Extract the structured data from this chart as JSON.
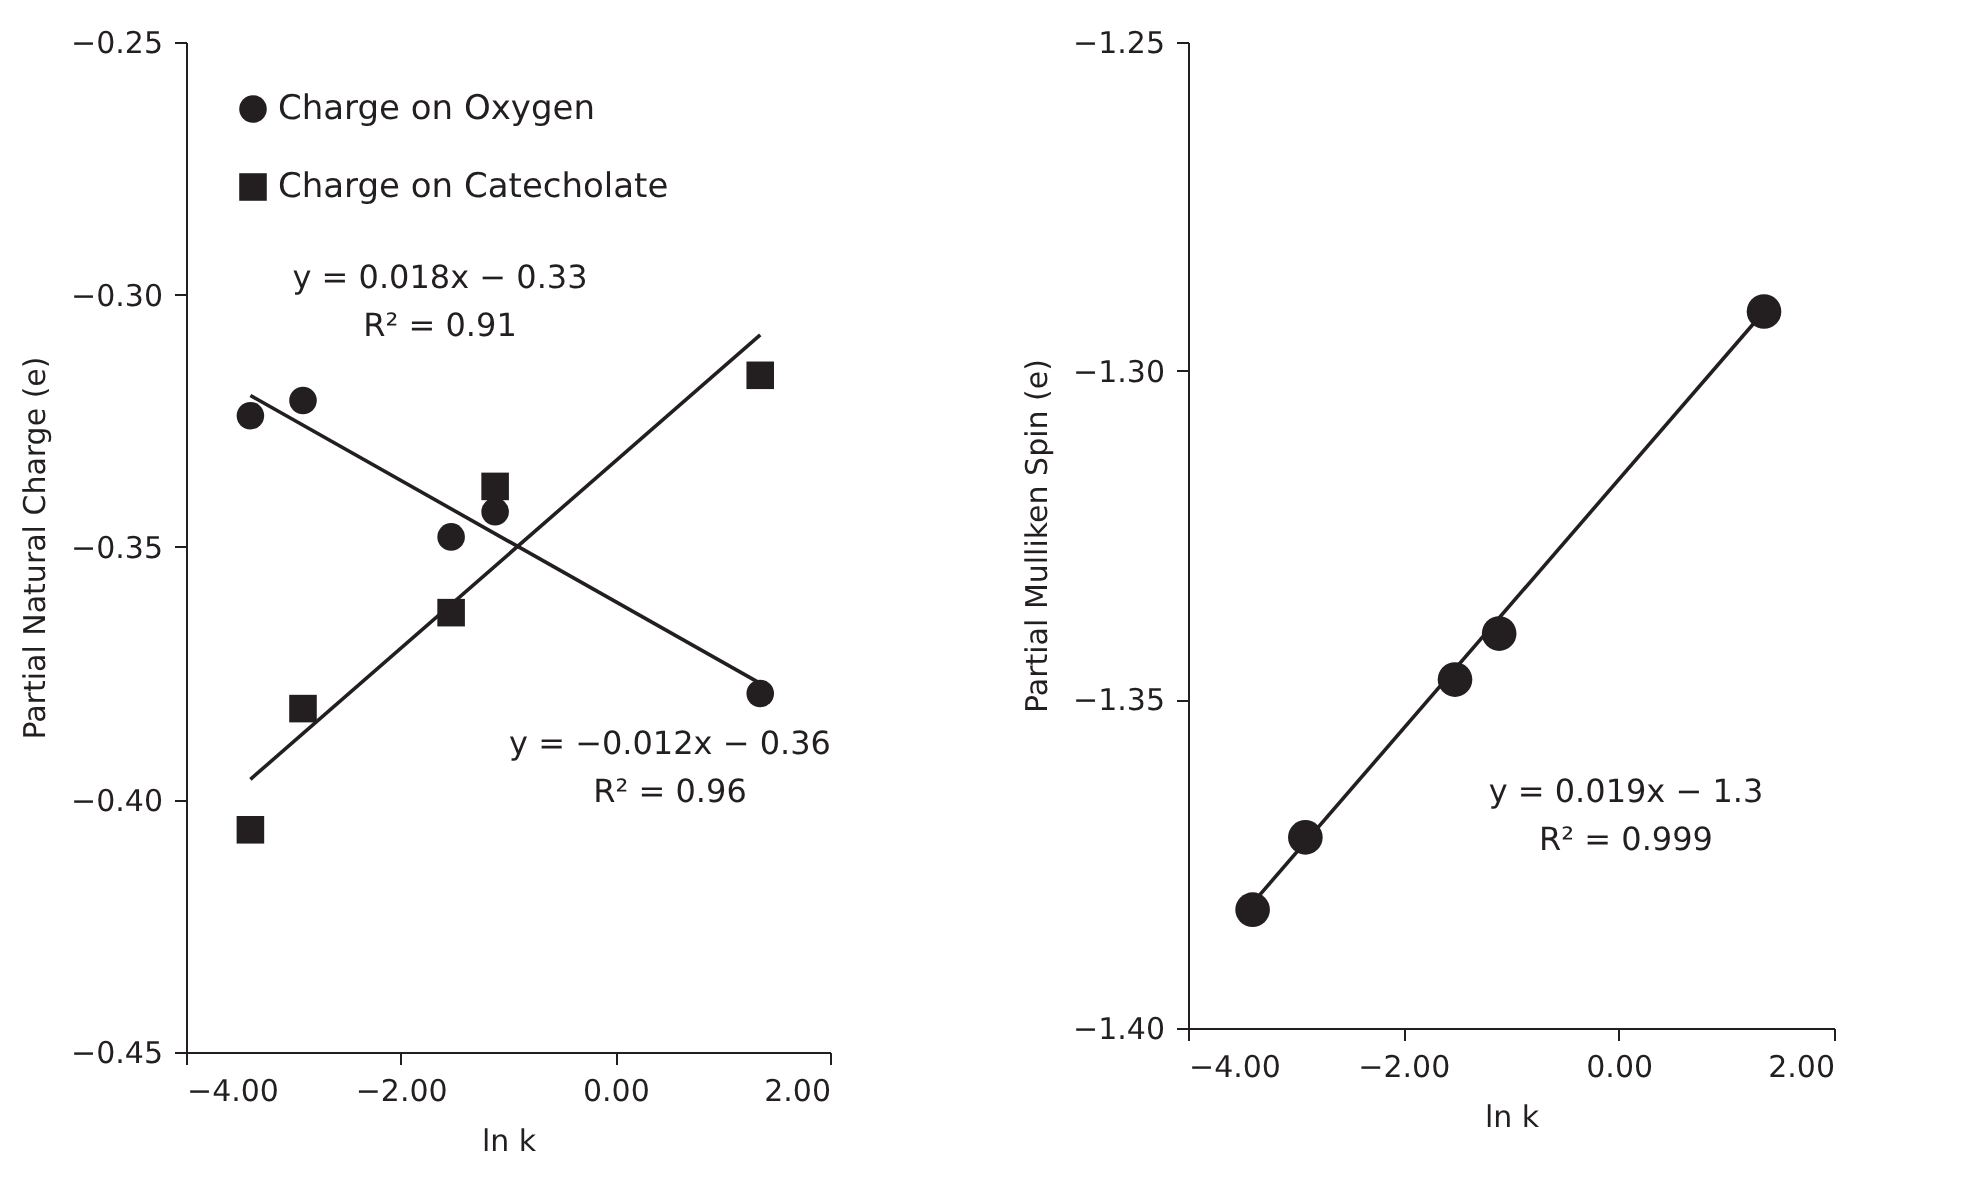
{
  "chart_data": [
    {
      "type": "scatter",
      "xlabel": "ln k",
      "ylabel": "Partial Natural Charge (e)",
      "xlim": [
        -4,
        2
      ],
      "xticks": [
        {
          "value": -4,
          "label": "−4.00"
        },
        {
          "value": -2,
          "label": "−2.00"
        },
        {
          "value": 0,
          "label": "0.00"
        },
        {
          "value": 2,
          "label": "2.00"
        }
      ],
      "ylim": [
        -0.45,
        -0.25
      ],
      "yticks": [
        {
          "value": -0.45,
          "label": "−0.45"
        },
        {
          "value": -0.4,
          "label": "−0.40"
        },
        {
          "value": -0.35,
          "label": "−0.35"
        },
        {
          "value": -0.3,
          "label": "−0.30"
        },
        {
          "value": -0.25,
          "label": "−0.25"
        }
      ],
      "grid": false,
      "legend": "top left",
      "series": [
        {
          "name": "Charge on Oxygen",
          "marker": "circle",
          "color": "#231f20",
          "x": [
            -3.4,
            -2.91,
            -1.53,
            -1.12,
            1.35
          ],
          "values": [
            -0.324,
            -0.321,
            -0.348,
            -0.343,
            -0.379
          ]
        },
        {
          "name": "Charge on Catecholate",
          "marker": "square",
          "color": "#231f20",
          "x": [
            -3.4,
            -2.91,
            -1.53,
            -1.12,
            1.35
          ],
          "values": [
            -0.406,
            -0.382,
            -0.363,
            -0.338,
            -0.316
          ]
        },
        {
          "type": "line",
          "color": "#231f20",
          "x": [
            -3.4,
            1.35
          ],
          "values": [
            -0.32,
            -0.377
          ]
        },
        {
          "type": "line",
          "color": "#231f20",
          "x": [
            -3.4,
            1.35
          ],
          "values": [
            -0.396,
            -0.308
          ]
        }
      ],
      "annotations": [
        "y = 0.018x − 0.33\nR² = 0.91",
        "y = −0.012x − 0.36\nR² = 0.96"
      ]
    },
    {
      "type": "scatter",
      "xlabel": "ln k",
      "ylabel": "Partial Mulliken Spin  (e)",
      "xlim": [
        -4,
        2
      ],
      "xticks": [
        {
          "value": -4,
          "label": "−4.00"
        },
        {
          "value": -2,
          "label": "−2.00"
        },
        {
          "value": 0,
          "label": "0.00"
        },
        {
          "value": 2,
          "label": "2.00"
        }
      ],
      "ylim": [
        -1.4,
        -1.25
      ],
      "yticks": [
        {
          "value": -1.4,
          "label": "−1.40"
        },
        {
          "value": -1.35,
          "label": "−1.35"
        },
        {
          "value": -1.3,
          "label": "−1.30"
        },
        {
          "value": -1.25,
          "label": "−1.25"
        }
      ],
      "grid": false,
      "series": [
        {
          "marker": "circle",
          "color": "#231f20",
          "x": [
            -3.4,
            -2.91,
            -1.52,
            -1.11,
            1.35
          ],
          "values": [
            -1.382,
            -1.371,
            -1.347,
            -1.34,
            -1.291
          ]
        },
        {
          "type": "line",
          "color": "#231f20",
          "x": [
            -3.4,
            1.35
          ],
          "values": [
            -1.381,
            -1.291
          ]
        }
      ],
      "annotations": [
        "y = 0.019x − 1.3\nR² = 0.999"
      ]
    }
  ]
}
